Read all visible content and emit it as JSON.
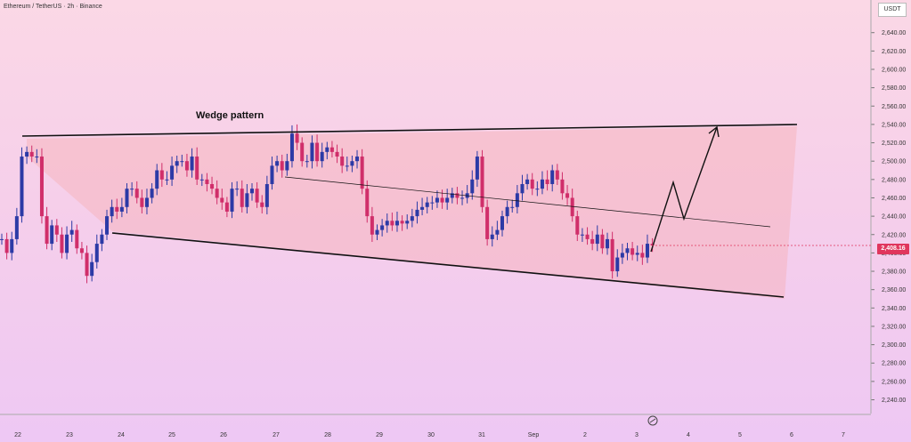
{
  "title": "Ethereum / TetherUS · 2h · Binance",
  "unit": "USDT",
  "annotation": "Wedge pattern",
  "current_price": "2,408.16",
  "colors": {
    "up": "#2c3aa6",
    "down": "#d02e6a",
    "line": "#111111",
    "zone": "#f7a5a5"
  },
  "chart_data": {
    "type": "candlestick",
    "title": "Ethereum / TetherUS · 2h · Binance",
    "x_ticks": [
      "22",
      "23",
      "24",
      "25",
      "26",
      "27",
      "28",
      "29",
      "30",
      "31",
      "Sep",
      "2",
      "3",
      "4",
      "5",
      "6",
      "7"
    ],
    "y_ticks": [
      "2,640.00",
      "2,620.00",
      "2,600.00",
      "2,580.00",
      "2,560.00",
      "2,540.00",
      "2,520.00",
      "2,500.00",
      "2,480.00",
      "2,460.00",
      "2,440.00",
      "2,420.00",
      "2,400.00",
      "2,380.00",
      "2,360.00",
      "2,340.00",
      "2,320.00",
      "2,300.00",
      "2,280.00",
      "2,260.00",
      "2,240.00"
    ],
    "ylim": [
      2225,
      2662
    ],
    "xlim": [
      21.75,
      7.4
    ],
    "last_price": 2408.16,
    "closes": [
      2415,
      2400,
      2415,
      2440,
      2505,
      2510,
      2505,
      2505,
      2440,
      2410,
      2430,
      2420,
      2400,
      2420,
      2425,
      2405,
      2400,
      2375,
      2390,
      2410,
      2420,
      2440,
      2450,
      2445,
      2450,
      2470,
      2470,
      2460,
      2450,
      2460,
      2470,
      2490,
      2480,
      2480,
      2495,
      2500,
      2500,
      2490,
      2505,
      2480,
      2480,
      2475,
      2470,
      2460,
      2455,
      2445,
      2470,
      2470,
      2450,
      2465,
      2470,
      2455,
      2450,
      2475,
      2495,
      2500,
      2490,
      2500,
      2530,
      2520,
      2500,
      2500,
      2520,
      2500,
      2510,
      2515,
      2510,
      2505,
      2495,
      2495,
      2500,
      2505,
      2470,
      2440,
      2420,
      2425,
      2430,
      2435,
      2430,
      2435,
      2432,
      2435,
      2440,
      2447,
      2450,
      2455,
      2455,
      2460,
      2455,
      2460,
      2465,
      2460,
      2460,
      2465,
      2480,
      2505,
      2450,
      2415,
      2420,
      2425,
      2440,
      2450,
      2450,
      2465,
      2475,
      2480,
      2470,
      2470,
      2480,
      2475,
      2490,
      2480,
      2465,
      2460,
      2440,
      2420,
      2420,
      2415,
      2410,
      2420,
      2405,
      2415,
      2380,
      2395,
      2400,
      2405,
      2398,
      2400,
      2395,
      2410,
      2408.16
    ],
    "zone": "triangle from 22 to 6",
    "projection": "path into the upper boundary"
  }
}
